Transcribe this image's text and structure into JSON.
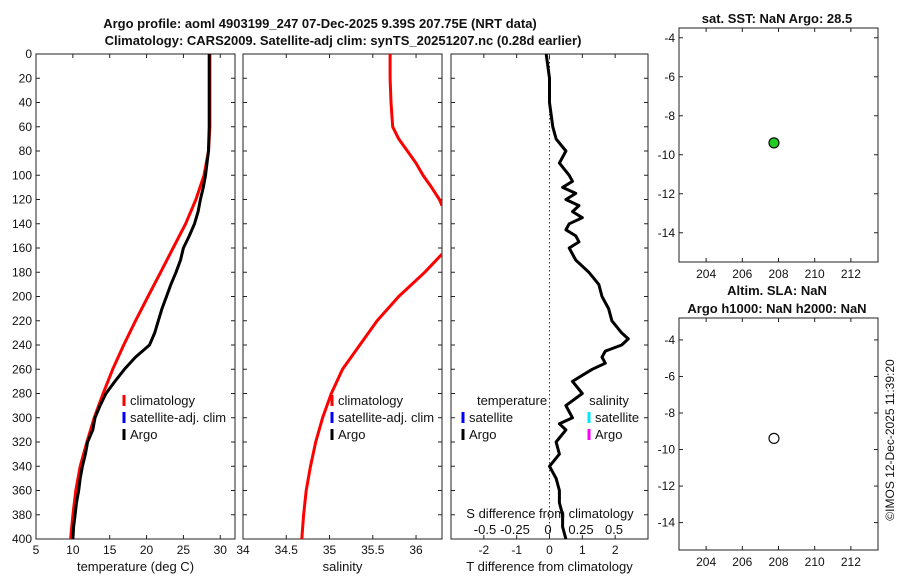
{
  "titles": {
    "line1": "Argo profile: aoml 4903199_247 07-Dec-2025 9.39S 207.75E (NRT data)",
    "line2": "Climatology: CARS2009. Satellite-adj clim: synTS_20251207.nc (0.28d earlier)",
    "sst": "sat. SST: NaN Argo: 28.5",
    "sla1": "Altim. SLA: NaN",
    "sla2": "Argo h1000: NaN h2000: NaN",
    "footer": "©IMOS 12-Dec-2025 11:39:20"
  },
  "colors": {
    "clim": "#ff0000",
    "sat": "#0000ff",
    "argo": "#000000",
    "cyan": "#00e5ff",
    "magenta": "#ff00ff",
    "green": "#22cc22"
  },
  "chart_data": [
    {
      "type": "line",
      "name": "temperature",
      "xlabel": "temperature (deg C)",
      "xlim": [
        5,
        32
      ],
      "ylim": [
        0,
        400
      ],
      "xticks": [
        "5",
        "10",
        "15",
        "20",
        "25",
        "30"
      ],
      "xtick_values": [
        5,
        10,
        15,
        20,
        25,
        30
      ],
      "yticks": [
        0,
        20,
        40,
        60,
        80,
        100,
        120,
        140,
        160,
        180,
        200,
        220,
        240,
        260,
        280,
        300,
        320,
        340,
        360,
        380,
        400
      ],
      "legend": [
        "climatology",
        "satellite-adj. clim",
        "Argo"
      ],
      "series": [
        {
          "name": "climatology",
          "depth": [
            0,
            20,
            40,
            60,
            80,
            100,
            120,
            140,
            160,
            180,
            200,
            220,
            240,
            260,
            280,
            300,
            320,
            340,
            360,
            380,
            400
          ],
          "values": [
            28.6,
            28.6,
            28.6,
            28.6,
            28.4,
            27.8,
            26.7,
            25.3,
            23.6,
            21.9,
            20.2,
            18.5,
            16.9,
            15.4,
            14.1,
            12.9,
            11.9,
            11.0,
            10.4,
            10.0,
            9.7
          ]
        },
        {
          "name": "Argo",
          "depth": [
            0,
            20,
            40,
            60,
            80,
            90,
            100,
            110,
            120,
            130,
            140,
            150,
            160,
            170,
            180,
            190,
            200,
            210,
            220,
            230,
            240,
            250,
            260,
            270,
            280,
            290,
            300,
            310,
            320,
            330,
            340,
            350,
            360,
            370,
            380,
            390,
            400
          ],
          "values": [
            28.5,
            28.5,
            28.5,
            28.5,
            28.4,
            28.2,
            28.0,
            27.7,
            27.3,
            27.0,
            26.5,
            25.8,
            25.0,
            24.6,
            24.0,
            23.3,
            22.7,
            22.1,
            21.6,
            21.1,
            20.4,
            18.5,
            17.0,
            15.7,
            14.5,
            13.7,
            13.0,
            12.7,
            12.0,
            11.7,
            11.3,
            11.0,
            10.8,
            10.5,
            10.3,
            10.1,
            10.0
          ]
        }
      ]
    },
    {
      "type": "line",
      "name": "salinity",
      "xlabel": "salinity",
      "xlim": [
        34,
        36.3
      ],
      "ylim": [
        0,
        400
      ],
      "xticks": [
        "34",
        "34.5",
        "35",
        "35.5",
        "36"
      ],
      "xtick_values": [
        34,
        34.5,
        35,
        35.5,
        36
      ],
      "legend": [
        "climatology",
        "satellite-adj. clim",
        "Argo"
      ],
      "series": [
        {
          "name": "climatology",
          "depth": [
            0,
            20,
            40,
            60,
            70,
            80,
            90,
            100,
            110,
            120,
            125
          ],
          "values": [
            35.7,
            35.7,
            35.71,
            35.73,
            35.8,
            35.9,
            36.0,
            36.08,
            36.18,
            36.27,
            36.3
          ]
        },
        {
          "name": "climatology-deep",
          "depth": [
            165,
            180,
            200,
            220,
            240,
            260,
            280,
            300,
            320,
            340,
            360,
            380,
            400
          ],
          "values": [
            36.3,
            36.1,
            35.8,
            35.55,
            35.35,
            35.15,
            35.02,
            34.92,
            34.84,
            34.78,
            34.73,
            34.7,
            34.68
          ]
        }
      ]
    },
    {
      "type": "line",
      "name": "T difference",
      "xlabel": "T difference from climatology",
      "xlabel2": "S difference from climatology",
      "xlim": [
        -3,
        3
      ],
      "ylim": [
        0,
        400
      ],
      "xticks": [
        "-2",
        "-1",
        "0",
        "1",
        "2"
      ],
      "xtick_values": [
        -2,
        -1,
        0,
        1,
        2
      ],
      "s_ticks": [
        "-0.5",
        "-0.25",
        "0",
        "0.25",
        "0.5"
      ],
      "legend_left_title": "temperature",
      "legend_left": [
        "satellite",
        "Argo"
      ],
      "legend_right_title": "salinity",
      "legend_right": [
        "satellite",
        "Argo"
      ],
      "series": [
        {
          "name": "Argo T diff",
          "depth": [
            0,
            20,
            40,
            60,
            70,
            80,
            90,
            100,
            105,
            110,
            115,
            120,
            125,
            130,
            135,
            140,
            145,
            150,
            155,
            160,
            165,
            170,
            180,
            190,
            200,
            210,
            220,
            230,
            235,
            240,
            245,
            250,
            255,
            260,
            265,
            270,
            280,
            290,
            300,
            305,
            310,
            320,
            330,
            340,
            345,
            350,
            360,
            370,
            380,
            390,
            400
          ],
          "values": [
            -0.1,
            0.0,
            0.0,
            0.1,
            0.2,
            0.5,
            0.3,
            0.6,
            0.7,
            0.4,
            0.8,
            0.5,
            0.9,
            0.7,
            1.0,
            0.6,
            0.5,
            0.8,
            0.9,
            0.6,
            0.7,
            0.8,
            1.2,
            1.5,
            1.6,
            1.8,
            1.9,
            2.2,
            2.4,
            2.2,
            1.7,
            1.6,
            1.7,
            1.3,
            1.0,
            0.7,
            1.0,
            0.5,
            0.7,
            0.3,
            0.5,
            0.2,
            0.3,
            0.0,
            0.1,
            0.2,
            0.3,
            0.3,
            0.4,
            0.4,
            0.5
          ]
        }
      ]
    },
    {
      "type": "scatter",
      "name": "sst map",
      "xlim": [
        202.5,
        213.5
      ],
      "ylim": [
        -15.5,
        -3.5
      ],
      "xticks": [
        "204",
        "206",
        "208",
        "210",
        "212"
      ],
      "xtick_values": [
        204,
        206,
        208,
        210,
        212
      ],
      "yticks": [
        "-4",
        "-6",
        "-8",
        "-10",
        "-12",
        "-14"
      ],
      "ytick_values": [
        -4,
        -6,
        -8,
        -10,
        -12,
        -14
      ],
      "points": [
        {
          "x": 207.75,
          "y": -9.39,
          "fill": "#22cc22"
        }
      ]
    },
    {
      "type": "scatter",
      "name": "sla map",
      "xlim": [
        202.5,
        213.5
      ],
      "ylim": [
        -15.5,
        -2.8
      ],
      "xticks": [
        "204",
        "206",
        "208",
        "210",
        "212"
      ],
      "xtick_values": [
        204,
        206,
        208,
        210,
        212
      ],
      "yticks": [
        "-4",
        "-6",
        "-8",
        "-10",
        "-12",
        "-14"
      ],
      "ytick_values": [
        -4,
        -6,
        -8,
        -10,
        -12,
        -14
      ],
      "points": [
        {
          "x": 207.75,
          "y": -9.39,
          "fill": "#ffffff"
        }
      ]
    }
  ]
}
